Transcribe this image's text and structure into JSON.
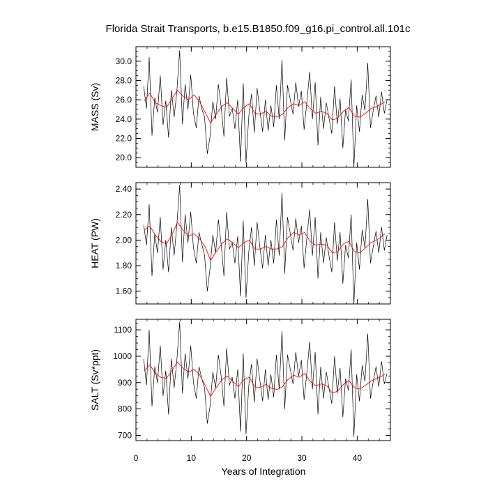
{
  "title": "Florida Strait Transports, b.e15.B1850.f09_g16.pi_control.all.101c",
  "xlabel": "Years of Integration",
  "colors": {
    "raw": "#000000",
    "smooth": "#ff0000",
    "frame": "#000000"
  },
  "chart_data": [
    {
      "type": "line",
      "ylabel": "MASS (Sv)",
      "xlim": [
        0,
        46
      ],
      "ylim": [
        19.0,
        31.5
      ],
      "yticks": [
        20.0,
        22.0,
        24.0,
        26.0,
        28.0,
        30.0
      ],
      "ytick_labels": [
        "20.0",
        "22.0",
        "24.0",
        "26.0",
        "28.0",
        "30.0"
      ],
      "xticks": [
        0,
        10,
        20,
        30,
        40
      ],
      "xtick_labels": [
        "0",
        "10",
        "20",
        "30",
        "40"
      ],
      "series": [
        {
          "style": "raw-monthly",
          "x": [
            1.4,
            1.9,
            2.4,
            2.9,
            3.4,
            3.9,
            4.4,
            4.9,
            5.4,
            5.9,
            6.4,
            6.9,
            7.4,
            7.9,
            8.4,
            8.9,
            9.4,
            9.9,
            10.4,
            10.9,
            11.4,
            11.9,
            12.4,
            12.9,
            13.4,
            13.9,
            14.4,
            14.9,
            15.4,
            15.9,
            16.4,
            16.9,
            17.4,
            17.9,
            18.4,
            18.9,
            19.4,
            19.9,
            20.4,
            20.9,
            21.4,
            21.9,
            22.4,
            22.9,
            23.4,
            23.9,
            24.4,
            24.9,
            25.4,
            25.9,
            26.4,
            26.9,
            27.4,
            27.9,
            28.4,
            28.9,
            29.4,
            29.9,
            30.4,
            30.9,
            31.4,
            31.9,
            32.4,
            32.9,
            33.4,
            33.9,
            34.4,
            34.9,
            35.4,
            35.9,
            36.4,
            36.9,
            37.4,
            37.9,
            38.4,
            38.9,
            39.4,
            39.9,
            40.4,
            40.9,
            41.4,
            41.9,
            42.4,
            42.9,
            43.4,
            43.9,
            44.4,
            44.9,
            45.4
          ],
          "y": [
            27.4,
            25.1,
            30.4,
            22.3,
            26.2,
            24.7,
            28.5,
            23.4,
            25.9,
            22.1,
            27.0,
            24.2,
            26.9,
            31.1,
            23.5,
            27.6,
            25.0,
            28.6,
            24.6,
            23.1,
            26.4,
            25.1,
            24.2,
            20.4,
            22.2,
            25.8,
            24.0,
            27.6,
            25.3,
            22.2,
            28.3,
            24.3,
            25.1,
            23.0,
            26.0,
            19.6,
            27.7,
            19.5,
            24.3,
            26.6,
            22.6,
            27.2,
            24.9,
            22.7,
            26.0,
            22.8,
            25.4,
            23.2,
            27.5,
            24.0,
            30.1,
            21.8,
            27.5,
            26.0,
            24.5,
            27.8,
            25.3,
            26.9,
            22.9,
            25.8,
            28.9,
            24.0,
            27.8,
            21.3,
            26.3,
            23.0,
            25.7,
            24.1,
            22.5,
            27.4,
            23.5,
            26.1,
            21.0,
            25.0,
            23.8,
            28.1,
            19.0,
            25.4,
            22.7,
            26.5,
            24.9,
            29.8,
            23.1,
            24.9,
            26.4,
            24.2,
            26.8,
            24.6,
            26.0
          ]
        },
        {
          "style": "smoothed",
          "x": [
            1.5,
            2.5,
            3.5,
            4.5,
            5.5,
            6.5,
            7.5,
            8.5,
            9.5,
            10.5,
            11.5,
            12.5,
            13.5,
            14.5,
            15.5,
            16.5,
            17.5,
            18.5,
            19.5,
            20.5,
            21.5,
            22.5,
            23.5,
            24.5,
            25.5,
            26.5,
            27.5,
            28.5,
            29.5,
            30.5,
            31.5,
            32.5,
            33.5,
            34.5,
            35.5,
            36.5,
            37.5,
            38.5,
            39.5,
            40.5,
            41.5,
            42.5,
            43.5,
            44.5,
            45.0
          ],
          "y": [
            25.9,
            26.7,
            25.7,
            25.4,
            25.2,
            26.1,
            27.0,
            26.4,
            26.0,
            26.5,
            25.8,
            24.7,
            23.6,
            24.5,
            25.3,
            25.7,
            25.1,
            24.5,
            25.2,
            25.6,
            24.6,
            24.5,
            24.8,
            24.3,
            24.2,
            24.5,
            25.2,
            25.6,
            25.4,
            25.8,
            25.1,
            24.6,
            24.8,
            24.6,
            23.9,
            24.1,
            24.8,
            25.2,
            24.3,
            24.2,
            24.6,
            25.1,
            25.3,
            25.6,
            25.8
          ]
        }
      ]
    },
    {
      "type": "line",
      "ylabel": "HEAT (PW)",
      "xlim": [
        0,
        46
      ],
      "ylim": [
        1.5,
        2.45
      ],
      "yticks": [
        1.6,
        1.8,
        2.0,
        2.2,
        2.4
      ],
      "ytick_labels": [
        "1.60",
        "1.80",
        "2.00",
        "2.20",
        "2.40"
      ],
      "xticks": [
        0,
        10,
        20,
        30,
        40
      ],
      "xtick_labels": [
        "0",
        "10",
        "20",
        "30",
        "40"
      ],
      "series": [
        {
          "style": "raw-monthly",
          "x": [
            1.4,
            1.9,
            2.4,
            2.9,
            3.4,
            3.9,
            4.4,
            4.9,
            5.4,
            5.9,
            6.4,
            6.9,
            7.4,
            7.9,
            8.4,
            8.9,
            9.4,
            9.9,
            10.4,
            10.9,
            11.4,
            11.9,
            12.4,
            12.9,
            13.4,
            13.9,
            14.4,
            14.9,
            15.4,
            15.9,
            16.4,
            16.9,
            17.4,
            17.9,
            18.4,
            18.9,
            19.4,
            19.9,
            20.4,
            20.9,
            21.4,
            21.9,
            22.4,
            22.9,
            23.4,
            23.9,
            24.4,
            24.9,
            25.4,
            25.9,
            26.4,
            26.9,
            27.4,
            27.9,
            28.4,
            28.9,
            29.4,
            29.9,
            30.4,
            30.9,
            31.4,
            31.9,
            32.4,
            32.9,
            33.4,
            33.9,
            34.4,
            34.9,
            35.4,
            35.9,
            36.4,
            36.9,
            37.4,
            37.9,
            38.4,
            38.9,
            39.4,
            39.9,
            40.4,
            40.9,
            41.4,
            41.9,
            42.4,
            42.9,
            43.4,
            43.9,
            44.4,
            44.9,
            45.4
          ],
          "y": [
            2.12,
            1.96,
            2.28,
            1.72,
            2.05,
            1.9,
            2.18,
            1.77,
            2.0,
            1.75,
            2.1,
            1.88,
            2.12,
            2.43,
            1.83,
            2.2,
            1.98,
            2.22,
            1.94,
            1.82,
            2.06,
            1.97,
            1.88,
            1.6,
            1.78,
            2.04,
            1.9,
            2.16,
            1.97,
            1.72,
            2.22,
            1.93,
            1.98,
            1.82,
            2.03,
            1.56,
            2.15,
            1.55,
            1.91,
            2.1,
            1.8,
            2.14,
            1.95,
            1.78,
            2.04,
            1.8,
            2.0,
            1.82,
            2.16,
            1.88,
            2.37,
            1.74,
            2.18,
            2.05,
            1.92,
            2.17,
            1.98,
            2.11,
            1.78,
            2.02,
            2.24,
            1.88,
            2.18,
            1.7,
            2.06,
            1.82,
            2.02,
            1.88,
            1.75,
            2.14,
            1.84,
            2.06,
            1.66,
            1.96,
            1.86,
            2.2,
            1.5,
            1.98,
            1.77,
            2.08,
            1.94,
            2.32,
            1.82,
            1.95,
            2.07,
            1.9,
            2.1,
            1.92,
            2.04
          ]
        },
        {
          "style": "smoothed",
          "x": [
            1.5,
            2.5,
            3.5,
            4.5,
            5.5,
            6.5,
            7.5,
            8.5,
            9.5,
            10.5,
            11.5,
            12.5,
            13.5,
            14.5,
            15.5,
            16.5,
            17.5,
            18.5,
            19.5,
            20.5,
            21.5,
            22.5,
            23.5,
            24.5,
            25.5,
            26.5,
            27.5,
            28.5,
            29.5,
            30.5,
            31.5,
            32.5,
            33.5,
            34.5,
            35.5,
            36.5,
            37.5,
            38.5,
            39.5,
            40.5,
            41.5,
            42.5,
            43.5,
            44.5,
            45.0
          ],
          "y": [
            2.08,
            2.11,
            2.04,
            1.99,
            1.97,
            2.04,
            2.14,
            2.08,
            2.03,
            2.05,
            2.01,
            1.95,
            1.84,
            1.91,
            1.97,
            2.01,
            1.98,
            1.94,
            1.98,
            2.0,
            1.93,
            1.93,
            1.95,
            1.93,
            1.93,
            1.95,
            2.02,
            2.06,
            2.04,
            2.06,
            1.99,
            1.96,
            1.97,
            1.96,
            1.9,
            1.91,
            1.97,
            1.99,
            1.91,
            1.9,
            1.94,
            1.98,
            2.0,
            2.03,
            2.05
          ]
        }
      ]
    },
    {
      "type": "line",
      "ylabel": "SALT (Sv*ppt)",
      "xlim": [
        0,
        46
      ],
      "ylim": [
        680,
        1140
      ],
      "yticks": [
        700,
        800,
        900,
        1000,
        1100
      ],
      "ytick_labels": [
        "700",
        "800",
        "900",
        "1000",
        "1100"
      ],
      "xticks": [
        0,
        10,
        20,
        30,
        40
      ],
      "xtick_labels": [
        "0",
        "10",
        "20",
        "30",
        "40"
      ],
      "series": [
        {
          "style": "raw-monthly",
          "x": [
            1.4,
            1.9,
            2.4,
            2.9,
            3.4,
            3.9,
            4.4,
            4.9,
            5.4,
            5.9,
            6.4,
            6.9,
            7.4,
            7.9,
            8.4,
            8.9,
            9.4,
            9.9,
            10.4,
            10.9,
            11.4,
            11.9,
            12.4,
            12.9,
            13.4,
            13.9,
            14.4,
            14.9,
            15.4,
            15.9,
            16.4,
            16.9,
            17.4,
            17.9,
            18.4,
            18.9,
            19.4,
            19.9,
            20.4,
            20.9,
            21.4,
            21.9,
            22.4,
            22.9,
            23.4,
            23.9,
            24.4,
            24.9,
            25.4,
            25.9,
            26.4,
            26.9,
            27.4,
            27.9,
            28.4,
            28.9,
            29.4,
            29.9,
            30.4,
            30.9,
            31.4,
            31.9,
            32.4,
            32.9,
            33.4,
            33.9,
            34.4,
            34.9,
            35.4,
            35.9,
            36.4,
            36.9,
            37.4,
            37.9,
            38.4,
            38.9,
            39.4,
            39.9,
            40.4,
            40.9,
            41.4,
            41.9,
            42.4,
            42.9,
            43.4,
            43.9,
            44.4,
            44.9,
            45.4
          ],
          "y": [
            990,
            890,
            1100,
            810,
            960,
            900,
            1040,
            850,
            945,
            780,
            990,
            880,
            985,
            1130,
            860,
            1010,
            915,
            1040,
            900,
            840,
            960,
            915,
            880,
            745,
            810,
            940,
            880,
            1005,
            925,
            810,
            1030,
            890,
            920,
            840,
            950,
            715,
            1010,
            705,
            890,
            970,
            825,
            990,
            910,
            830,
            950,
            835,
            930,
            845,
            1005,
            875,
            1095,
            800,
            1005,
            950,
            895,
            1015,
            925,
            985,
            835,
            940,
            1055,
            875,
            1015,
            780,
            960,
            840,
            940,
            880,
            820,
            1000,
            860,
            955,
            770,
            915,
            870,
            1025,
            695,
            930,
            830,
            965,
            905,
            1085,
            840,
            905,
            960,
            885,
            980,
            895,
            935
          ]
        },
        {
          "style": "smoothed",
          "x": [
            1.5,
            2.5,
            3.5,
            4.5,
            5.5,
            6.5,
            7.5,
            8.5,
            9.5,
            10.5,
            11.5,
            12.5,
            13.5,
            14.5,
            15.5,
            16.5,
            17.5,
            18.5,
            19.5,
            20.5,
            21.5,
            22.5,
            23.5,
            24.5,
            25.5,
            26.5,
            27.5,
            28.5,
            29.5,
            30.5,
            31.5,
            32.5,
            33.5,
            34.5,
            35.5,
            36.5,
            37.5,
            38.5,
            39.5,
            40.5,
            41.5,
            42.5,
            43.5,
            44.5,
            45.0
          ],
          "y": [
            945,
            968,
            935,
            920,
            915,
            945,
            978,
            955,
            940,
            950,
            930,
            890,
            848,
            880,
            910,
            925,
            905,
            885,
            910,
            920,
            883,
            882,
            893,
            878,
            874,
            885,
            912,
            928,
            920,
            935,
            905,
            888,
            895,
            888,
            860,
            868,
            893,
            908,
            880,
            876,
            890,
            906,
            915,
            925,
            932
          ]
        }
      ]
    }
  ]
}
